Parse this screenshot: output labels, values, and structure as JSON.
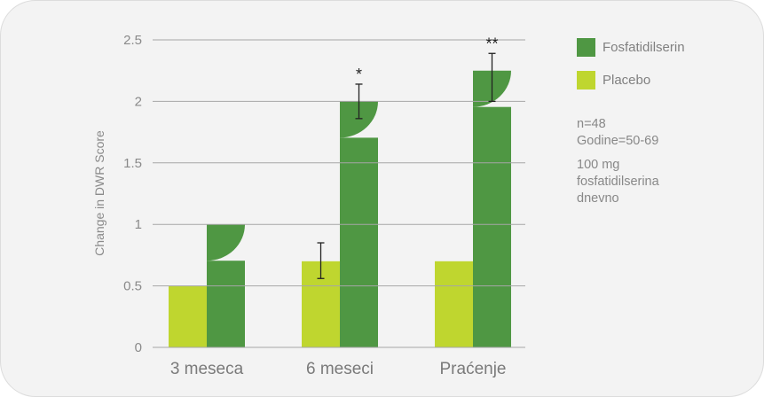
{
  "chart_data": {
    "type": "bar",
    "ylabel": "Change in DWR Score",
    "xlabel": "",
    "ylim": [
      0,
      2.5
    ],
    "yticks": [
      "0",
      "0.5",
      "1",
      "1.5",
      "2",
      "2.5"
    ],
    "categories": [
      "3 meseca",
      "6 meseci",
      "Praćenje"
    ],
    "grid": true,
    "legend_position": "right",
    "series": [
      {
        "name": "Placebo",
        "color": "#bfd62f",
        "values": [
          0.5,
          0.7,
          0.7
        ],
        "errors": [
          null,
          [
            0.56,
            0.85
          ],
          null
        ],
        "marks": [
          "",
          "",
          ""
        ]
      },
      {
        "name": "Fosfatidilserin",
        "color": "#4f9743",
        "values": [
          1.0,
          2.0,
          2.25
        ],
        "errors": [
          null,
          [
            1.86,
            2.14
          ],
          [
            2.0,
            2.39
          ]
        ],
        "marks": [
          "",
          "*",
          "**"
        ]
      }
    ]
  },
  "legend": [
    {
      "label": "Fosfatidilserin",
      "color": "#4f9743"
    },
    {
      "label": "Placebo",
      "color": "#bfd62f"
    }
  ],
  "notes": {
    "line1": "n=48",
    "line2": "Godine=50-69",
    "line3": "100 mg",
    "line4": "fosfatidilserina",
    "line5": "dnevno"
  }
}
